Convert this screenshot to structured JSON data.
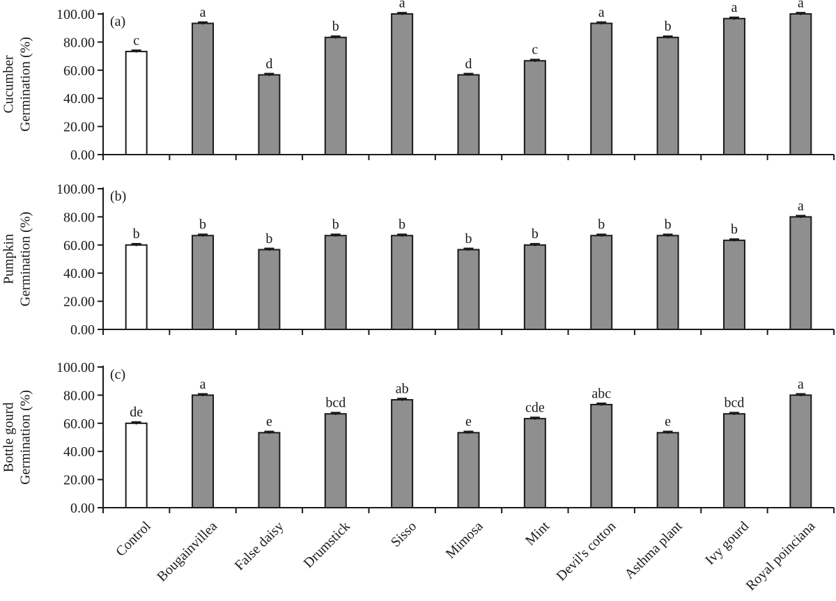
{
  "chart_data": [
    {
      "type": "bar",
      "panel_label": "(a)",
      "ylabel": [
        "Cucumber",
        "Germination (%)"
      ],
      "values": [
        73.3,
        93.3,
        56.7,
        83.3,
        100,
        56.7,
        66.7,
        93.3,
        83.3,
        96.7,
        100
      ],
      "errors": [
        0.8,
        0.8,
        0.8,
        0.8,
        0.8,
        0.8,
        0.8,
        0.8,
        0.8,
        0.8,
        0.8
      ],
      "letters": [
        "c",
        "a",
        "d",
        "b",
        "a",
        "d",
        "c",
        "a",
        "b",
        "a",
        "a"
      ],
      "colors": [
        "#ffffff",
        "#8f8f8f",
        "#8f8f8f",
        "#8f8f8f",
        "#8f8f8f",
        "#8f8f8f",
        "#8f8f8f",
        "#8f8f8f",
        "#8f8f8f",
        "#8f8f8f",
        "#8f8f8f"
      ],
      "ylim": [
        0,
        100
      ],
      "yticks": [
        {
          "value": 0,
          "label": "0.00"
        },
        {
          "value": 20,
          "label": "20.00"
        },
        {
          "value": 40,
          "label": "40.00"
        },
        {
          "value": 60,
          "label": "60.00"
        },
        {
          "value": 80,
          "label": "80.00"
        },
        {
          "value": 100,
          "label": "100.00"
        }
      ]
    },
    {
      "type": "bar",
      "panel_label": "(b)",
      "ylabel": [
        "Pumpkin",
        "Germination (%)"
      ],
      "values": [
        60,
        66.7,
        56.7,
        66.7,
        66.7,
        56.7,
        60,
        66.7,
        66.7,
        63.3,
        80
      ],
      "errors": [
        0.8,
        0.8,
        0.8,
        0.8,
        0.8,
        0.8,
        0.8,
        0.8,
        0.8,
        0.8,
        0.8
      ],
      "letters": [
        "b",
        "b",
        "b",
        "b",
        "b",
        "b",
        "b",
        "b",
        "b",
        "b",
        "a"
      ],
      "colors": [
        "#ffffff",
        "#8f8f8f",
        "#8f8f8f",
        "#8f8f8f",
        "#8f8f8f",
        "#8f8f8f",
        "#8f8f8f",
        "#8f8f8f",
        "#8f8f8f",
        "#8f8f8f",
        "#8f8f8f"
      ],
      "ylim": [
        0,
        100
      ],
      "yticks": [
        {
          "value": 0,
          "label": "0.00"
        },
        {
          "value": 20,
          "label": "20.00"
        },
        {
          "value": 40,
          "label": "40.00"
        },
        {
          "value": 60,
          "label": "60.00"
        },
        {
          "value": 80,
          "label": "80.00"
        },
        {
          "value": 100,
          "label": "100.00"
        }
      ]
    },
    {
      "type": "bar",
      "panel_label": "(c)",
      "ylabel": [
        "Bottle gourd",
        "Germination (%)"
      ],
      "categories": [
        "Control",
        "Bougainvillea",
        "False daisy",
        "Drumstick",
        "Sisso",
        "Mimosa",
        "Mint",
        "Devil's cotton",
        "Asthma plant",
        "Ivy gourd",
        "Royal poinciana"
      ],
      "values": [
        60,
        80,
        53.3,
        66.7,
        76.7,
        53.3,
        63.3,
        73.3,
        53.3,
        66.7,
        80
      ],
      "errors": [
        0.8,
        0.8,
        0.8,
        0.8,
        0.8,
        0.8,
        0.8,
        0.8,
        0.8,
        0.8,
        0.8
      ],
      "letters": [
        "de",
        "a",
        "e",
        "bcd",
        "ab",
        "e",
        "cde",
        "abc",
        "e",
        "bcd",
        "a"
      ],
      "colors": [
        "#ffffff",
        "#8f8f8f",
        "#8f8f8f",
        "#8f8f8f",
        "#8f8f8f",
        "#8f8f8f",
        "#8f8f8f",
        "#8f8f8f",
        "#8f8f8f",
        "#8f8f8f",
        "#8f8f8f"
      ],
      "ylim": [
        0,
        100
      ],
      "yticks": [
        {
          "value": 0,
          "label": "0.00"
        },
        {
          "value": 20,
          "label": "20.00"
        },
        {
          "value": 40,
          "label": "40.00"
        },
        {
          "value": 60,
          "label": "60.00"
        },
        {
          "value": 80,
          "label": "80.00"
        },
        {
          "value": 100,
          "label": "100.00"
        }
      ]
    }
  ]
}
